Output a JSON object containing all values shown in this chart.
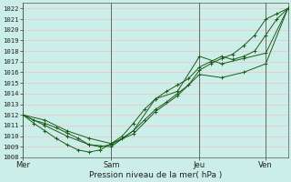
{
  "xlabel": "Pression niveau de la mer( hPa )",
  "bg_color": "#cceee8",
  "grid_color": "#f0c0c8",
  "line_color": "#1a5c1a",
  "ylim": [
    1008,
    1022.5
  ],
  "ytick_min": 1008,
  "ytick_max": 1022,
  "day_labels": [
    "Mer",
    "Sam",
    "Jeu",
    "Ven"
  ],
  "day_positions": [
    0,
    8,
    16,
    22
  ],
  "xlim": [
    0,
    24
  ],
  "lines": [
    {
      "x": [
        0,
        1,
        2,
        3,
        4,
        5,
        6,
        7,
        8,
        9,
        10,
        11,
        12,
        13,
        14,
        15,
        16,
        17,
        18,
        19,
        20,
        21,
        22,
        23,
        24
      ],
      "y": [
        1012,
        1011.5,
        1011.2,
        1010.8,
        1010.3,
        1009.8,
        1009.2,
        1009.0,
        1009.2,
        1009.8,
        1010.5,
        1011.5,
        1012.5,
        1013.2,
        1014.0,
        1014.8,
        1016.2,
        1016.8,
        1017.3,
        1017.7,
        1018.5,
        1019.5,
        1021.0,
        1021.5,
        1022.0
      ]
    },
    {
      "x": [
        0,
        1,
        2,
        3,
        4,
        5,
        6,
        7,
        8,
        9,
        10,
        11,
        12,
        13,
        14,
        15,
        16,
        17,
        18,
        19,
        20,
        21,
        22,
        23,
        24
      ],
      "y": [
        1012,
        1011.2,
        1010.5,
        1009.8,
        1009.2,
        1008.7,
        1008.5,
        1008.7,
        1009.3,
        1010.0,
        1011.2,
        1012.5,
        1013.5,
        1014.2,
        1014.8,
        1015.4,
        1016.5,
        1017.0,
        1017.5,
        1017.2,
        1017.5,
        1018.0,
        1019.5,
        1021.0,
        1022.0
      ]
    },
    {
      "x": [
        0,
        2,
        4,
        6,
        8,
        10,
        12,
        14,
        16,
        18,
        20,
        22,
        24
      ],
      "y": [
        1012,
        1011.0,
        1010.0,
        1009.2,
        1009.0,
        1010.5,
        1013.5,
        1014.2,
        1017.5,
        1016.8,
        1017.3,
        1017.8,
        1022.0
      ]
    },
    {
      "x": [
        0,
        2,
        4,
        6,
        8,
        10,
        12,
        14,
        16,
        18,
        20,
        22,
        24
      ],
      "y": [
        1012,
        1011.5,
        1010.5,
        1009.8,
        1009.3,
        1010.2,
        1012.3,
        1013.8,
        1015.8,
        1015.5,
        1016.0,
        1016.8,
        1022.0
      ]
    }
  ]
}
